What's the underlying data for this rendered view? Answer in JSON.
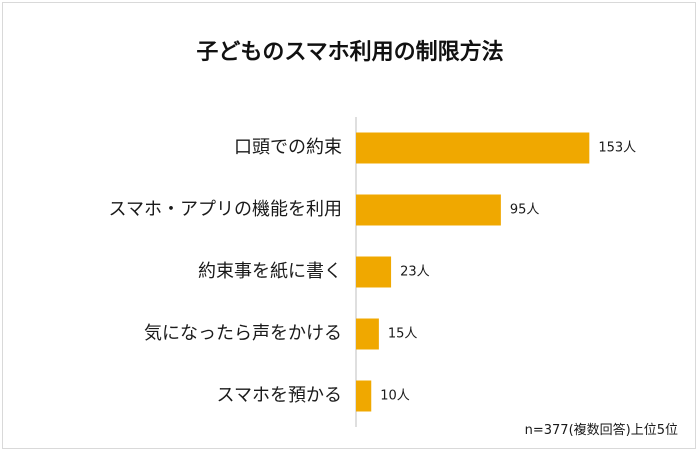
{
  "chart_data": {
    "type": "bar",
    "orientation": "horizontal",
    "title": "子どものスマホ利用の制限方法",
    "categories": [
      "口頭での約束",
      "スマホ・アプリの機能を利用",
      "約束事を紙に書く",
      "気になったら声をかける",
      "スマホを預かる"
    ],
    "values": [
      153,
      95,
      23,
      15,
      10
    ],
    "value_labels": [
      "153人",
      "95人",
      "23人",
      "15人",
      "10人"
    ],
    "xlabel": "",
    "ylabel": "",
    "xlim": [
      0,
      160
    ],
    "grid": false,
    "legend": "none",
    "bar_color": "#f0a800",
    "footnote": "n=377(複数回答)上位5位"
  }
}
